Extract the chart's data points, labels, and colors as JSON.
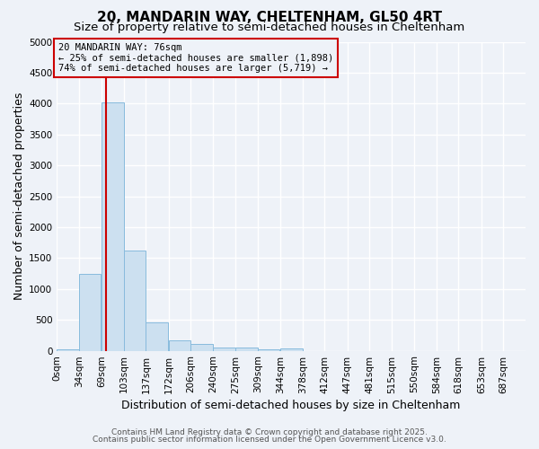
{
  "title": "20, MANDARIN WAY, CHELTENHAM, GL50 4RT",
  "subtitle": "Size of property relative to semi-detached houses in Cheltenham",
  "xlabel": "Distribution of semi-detached houses by size in Cheltenham",
  "ylabel": "Number of semi-detached properties",
  "footnote1": "Contains HM Land Registry data © Crown copyright and database right 2025.",
  "footnote2": "Contains public sector information licensed under the Open Government Licence v3.0.",
  "bin_labels": [
    "0sqm",
    "34sqm",
    "69sqm",
    "103sqm",
    "137sqm",
    "172sqm",
    "206sqm",
    "240sqm",
    "275sqm",
    "309sqm",
    "344sqm",
    "378sqm",
    "412sqm",
    "447sqm",
    "481sqm",
    "515sqm",
    "550sqm",
    "584sqm",
    "618sqm",
    "653sqm",
    "687sqm"
  ],
  "bin_edges": [
    0,
    34,
    69,
    103,
    137,
    172,
    206,
    240,
    275,
    309,
    344,
    378,
    412,
    447,
    481,
    515,
    550,
    584,
    618,
    653,
    687
  ],
  "bar_values": [
    30,
    1240,
    4020,
    1620,
    460,
    175,
    105,
    55,
    50,
    30,
    35,
    0,
    0,
    0,
    0,
    0,
    0,
    0,
    0,
    0
  ],
  "bar_color": "#cce0f0",
  "bar_edge_color": "#88bbdd",
  "ylim": [
    0,
    5000
  ],
  "yticks": [
    0,
    500,
    1000,
    1500,
    2000,
    2500,
    3000,
    3500,
    4000,
    4500,
    5000
  ],
  "property_sqm": 76,
  "property_label": "20 MANDARIN WAY: 76sqm",
  "annotation_line1": "← 25% of semi-detached houses are smaller (1,898)",
  "annotation_line2": "74% of semi-detached houses are larger (5,719) →",
  "vline_color": "#cc0000",
  "annotation_box_color": "#cc0000",
  "background_color": "#eef2f8",
  "grid_color": "#ffffff",
  "title_fontsize": 11,
  "subtitle_fontsize": 9.5,
  "axis_label_fontsize": 9,
  "tick_fontsize": 7.5,
  "annotation_fontsize": 7.5,
  "footnote_fontsize": 6.5
}
